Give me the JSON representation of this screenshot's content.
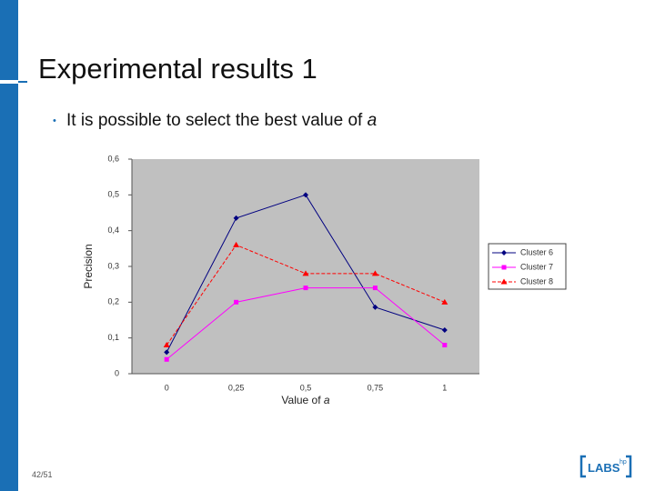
{
  "slide": {
    "title": "Experimental results 1",
    "bullet": "It is possible to select the best value of",
    "bullet_italic": "a",
    "page_number": "42/51",
    "logo": "LABS",
    "logo_sup": "hp"
  },
  "chart_data": {
    "type": "line",
    "ylabel": "Precision",
    "xlabel": "Value of",
    "xlabel_italic": "a",
    "categories": [
      "0",
      "0,25",
      "0,5",
      "0,75",
      "1"
    ],
    "ylim": [
      0,
      0.6
    ],
    "yticks": [
      0,
      {
        "value": 0.1,
        "label": "0,1"
      },
      {
        "value": 0.2,
        "label": "0,2"
      },
      {
        "value": 0.3,
        "label": "0,3"
      },
      {
        "value": 0.4,
        "label": "0,4"
      },
      {
        "value": 0.5,
        "label": "0,5"
      },
      {
        "value": 0.6,
        "label": "0,6"
      }
    ],
    "grid": false,
    "legend": "right",
    "series": [
      {
        "name": "Cluster 6",
        "color": "#000080",
        "marker": "diamond",
        "dashed": false,
        "values": [
          0.06,
          0.435,
          0.5,
          0.186,
          0.122
        ]
      },
      {
        "name": "Cluster 7",
        "color": "#ff00ff",
        "marker": "square",
        "dashed": false,
        "values": [
          0.04,
          0.2,
          0.24,
          0.24,
          0.08
        ]
      },
      {
        "name": "Cluster 8",
        "color": "#ff0000",
        "marker": "triangle",
        "dashed": true,
        "values": [
          0.08,
          0.36,
          0.28,
          0.28,
          0.2
        ]
      }
    ]
  }
}
